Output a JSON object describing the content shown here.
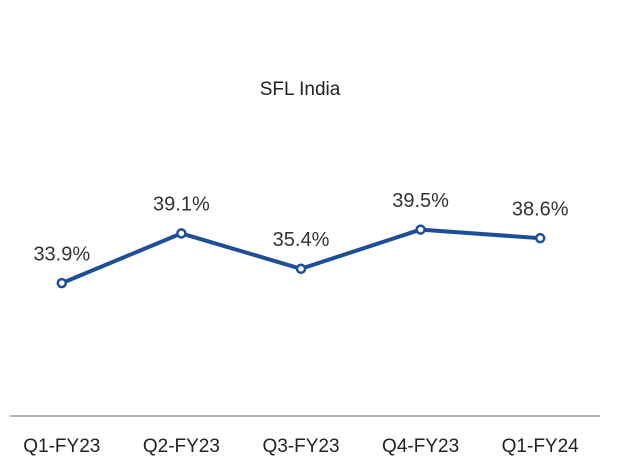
{
  "chart_data": {
    "type": "line",
    "title": "SFL India",
    "categories": [
      "Q1-FY23",
      "Q2-FY23",
      "Q3-FY23",
      "Q4-FY23",
      "Q1-FY24"
    ],
    "series": [
      {
        "name": "SFL India",
        "color": "#1f4e99",
        "values": [
          33.9,
          39.1,
          35.4,
          39.5,
          38.6
        ],
        "value_labels": [
          "33.9%",
          "39.1%",
          "35.4%",
          "39.5%",
          "38.6%"
        ]
      }
    ],
    "ylim": [
      20,
      45
    ]
  }
}
